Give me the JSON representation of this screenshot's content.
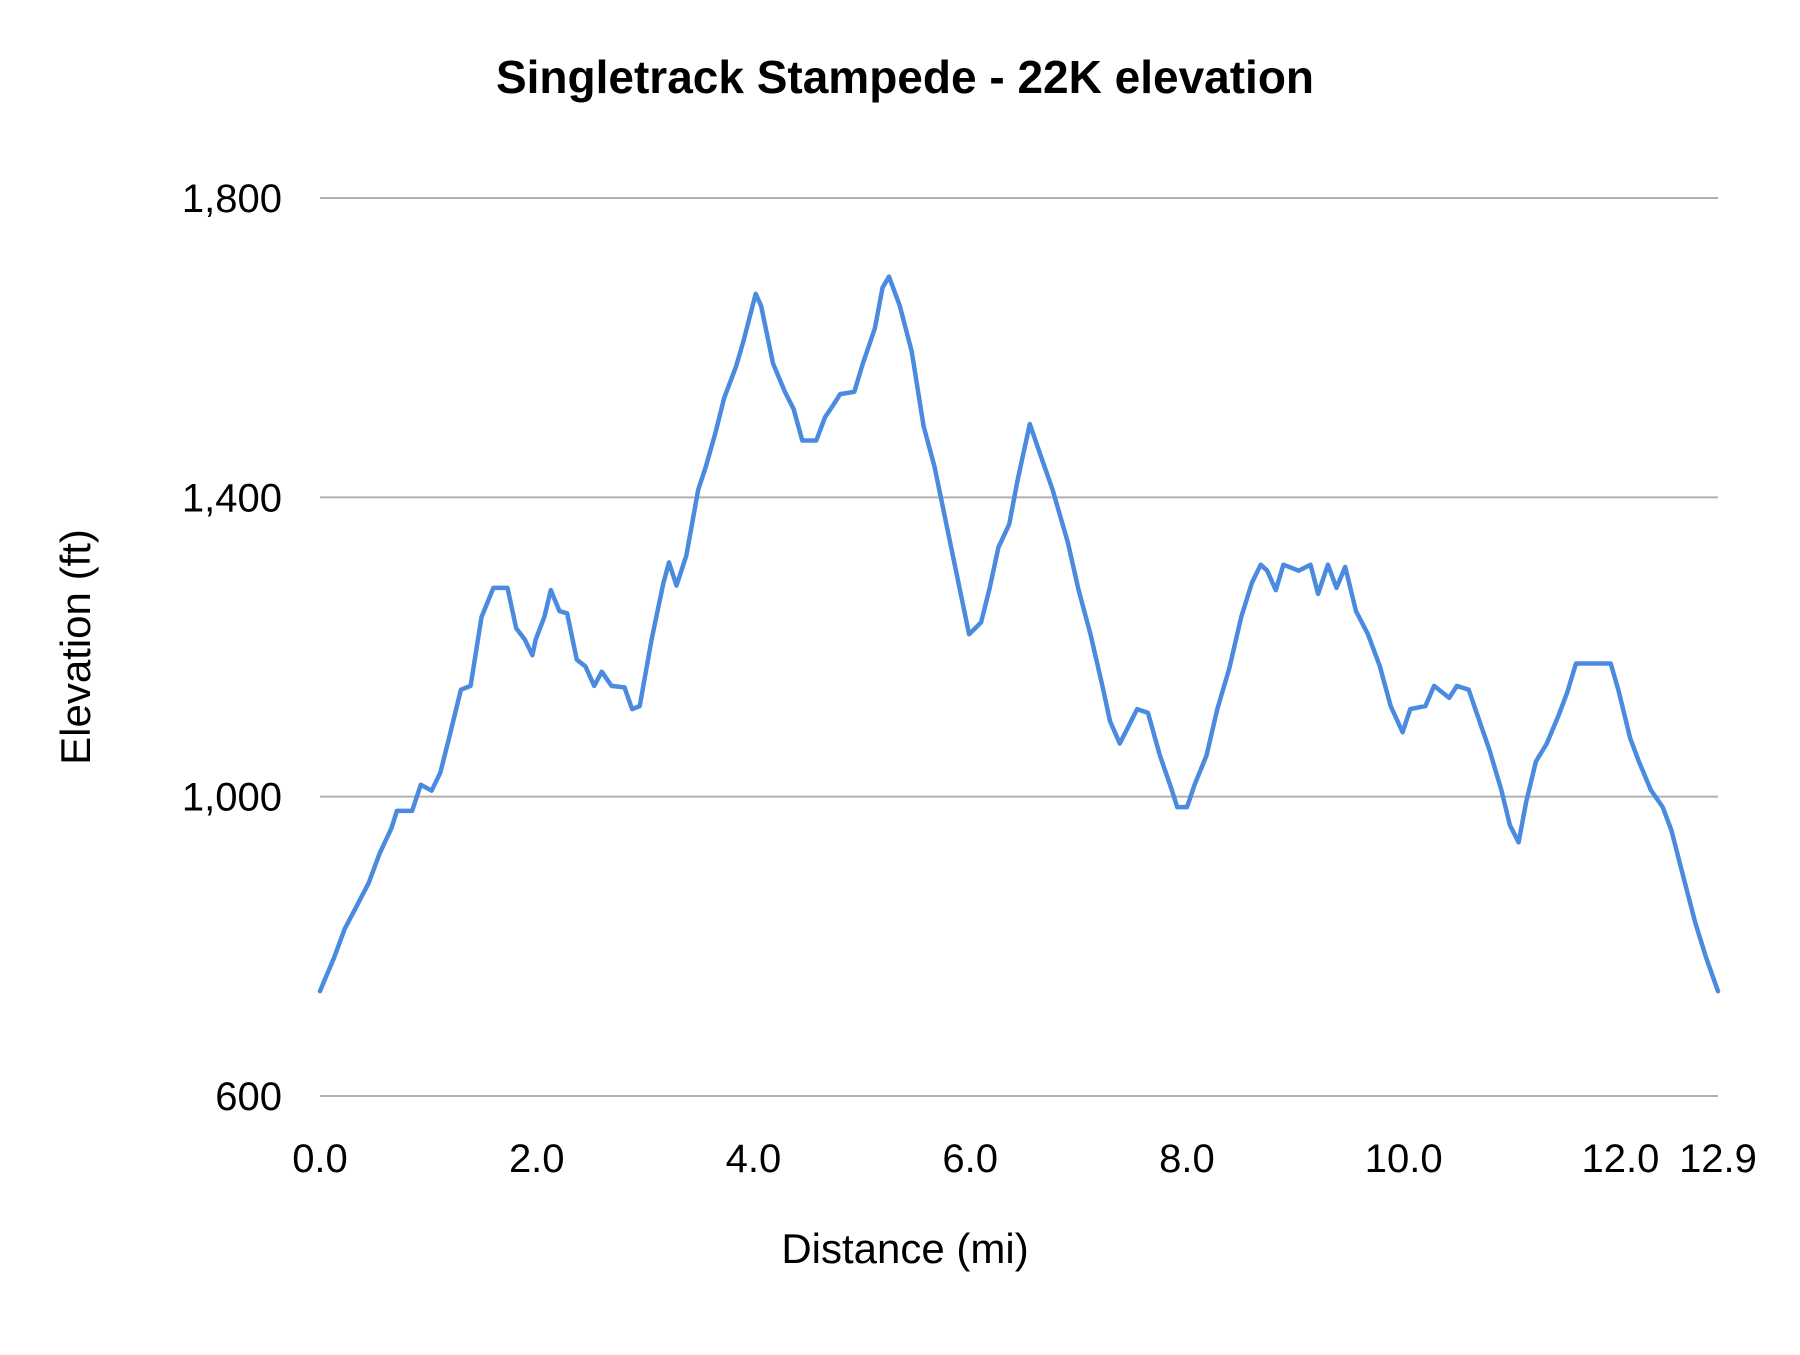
{
  "chart_data": {
    "type": "line",
    "title": "Singletrack Stampede - 22K elevation",
    "xlabel": "Distance (mi)",
    "ylabel": "Elevation (ft)",
    "xlim": [
      0,
      12.9
    ],
    "ylim": [
      600,
      1800
    ],
    "x_ticks": [
      "0.0",
      "2.0",
      "4.0",
      "6.0",
      "8.0",
      "10.0",
      "12.0",
      "12.9"
    ],
    "x_tick_values": [
      0,
      2,
      4,
      6,
      8,
      10,
      12,
      12.9
    ],
    "y_ticks": [
      "600",
      "1,000",
      "1,400",
      "1,800"
    ],
    "y_tick_values": [
      600,
      1000,
      1400,
      1800
    ],
    "grid": "horizontal",
    "legend": "none",
    "line_color": "#4a8be0",
    "grid_color": "#b0b0b0",
    "series": [
      {
        "x": [
          0,
          0.04,
          0.13,
          0.23,
          0.34,
          0.45,
          0.55,
          0.66,
          0.71,
          0.85,
          0.93,
          1.03,
          1.11,
          1.19,
          1.3,
          1.39,
          1.49,
          1.6,
          1.73,
          1.81,
          1.89,
          1.96,
          1.99,
          2.07,
          2.13,
          2.21,
          2.28,
          2.37,
          2.45,
          2.53,
          2.6,
          2.69,
          2.81,
          2.88,
          2.95,
          3.06,
          3.17,
          3.22,
          3.29,
          3.38,
          3.49,
          3.56,
          3.65,
          3.73,
          3.84,
          3.91,
          4.02,
          4.07,
          4.18,
          4.29,
          4.37,
          4.45,
          4.58,
          4.66,
          4.73,
          4.8,
          4.93,
          5.01,
          5.12,
          5.19,
          5.25,
          5.35,
          5.46,
          5.57,
          5.67,
          5.78,
          5.88,
          5.99,
          6.1,
          6.18,
          6.26,
          6.36,
          6.44,
          6.55,
          6.63,
          6.76,
          6.9,
          7.0,
          7.11,
          7.22,
          7.29,
          7.38,
          7.46,
          7.54,
          7.64,
          7.75,
          7.86,
          7.91,
          8.0,
          8.07,
          8.18,
          8.28,
          8.39,
          8.5,
          8.6,
          8.68,
          8.74,
          8.82,
          8.89,
          9.03,
          9.14,
          9.21,
          9.3,
          9.38,
          9.46,
          9.56,
          9.67,
          9.78,
          9.88,
          9.99,
          10.06,
          10.2,
          10.28,
          10.42,
          10.49,
          10.6,
          10.68,
          10.79,
          10.9,
          10.98,
          11.06,
          11.13,
          11.22,
          11.32,
          11.43,
          11.51,
          11.59,
          11.91,
          11.98,
          12.09,
          12.17,
          12.28,
          12.39,
          12.47,
          12.58,
          12.69,
          12.79,
          12.9
        ],
        "y": [
          740,
          754,
          785,
          824,
          854,
          885,
          924,
          958,
          981,
          981,
          1016,
          1008,
          1032,
          1078,
          1143,
          1148,
          1240,
          1279,
          1279,
          1225,
          1210,
          1189,
          1210,
          1240,
          1276,
          1248,
          1245,
          1183,
          1174,
          1148,
          1167,
          1148,
          1146,
          1117,
          1121,
          1210,
          1286,
          1313,
          1282,
          1322,
          1410,
          1441,
          1487,
          1533,
          1575,
          1610,
          1672,
          1656,
          1579,
          1541,
          1518,
          1476,
          1476,
          1507,
          1522,
          1538,
          1541,
          1579,
          1626,
          1680,
          1695,
          1656,
          1595,
          1495,
          1441,
          1364,
          1294,
          1217,
          1233,
          1279,
          1333,
          1364,
          1425,
          1498,
          1464,
          1410,
          1340,
          1276,
          1217,
          1148,
          1101,
          1071,
          1094,
          1117,
          1112,
          1055,
          1009,
          986,
          986,
          1016,
          1055,
          1117,
          1171,
          1240,
          1286,
          1310,
          1302,
          1276,
          1310,
          1302,
          1310,
          1271,
          1310,
          1279,
          1307,
          1248,
          1217,
          1174,
          1121,
          1086,
          1117,
          1121,
          1148,
          1132,
          1148,
          1143,
          1109,
          1063,
          1009,
          962,
          939,
          993,
          1047,
          1071,
          1109,
          1140,
          1178,
          1178,
          1143,
          1078,
          1047,
          1009,
          986,
          955,
          893,
          832,
          785,
          740
        ]
      }
    ]
  }
}
